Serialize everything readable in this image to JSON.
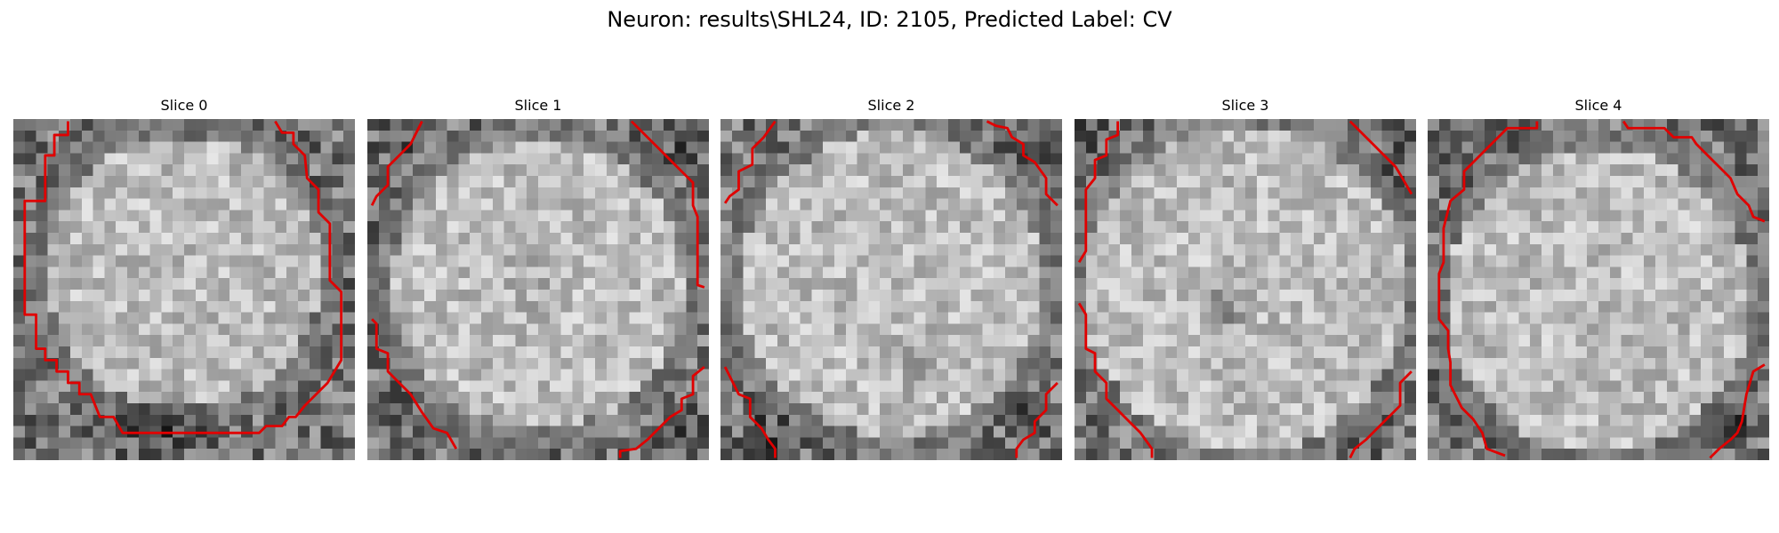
{
  "figure": {
    "title": "Neuron: results\\SHL24, ID: 2105, Predicted Label: CV"
  },
  "panels": [
    {
      "title": "Slice 0"
    },
    {
      "title": "Slice 1"
    },
    {
      "title": "Slice 2"
    },
    {
      "title": "Slice 3"
    },
    {
      "title": "Slice 4"
    }
  ],
  "colors": {
    "contour": "#e00000",
    "background": "#ffffff",
    "colormap": "grayscale"
  }
}
